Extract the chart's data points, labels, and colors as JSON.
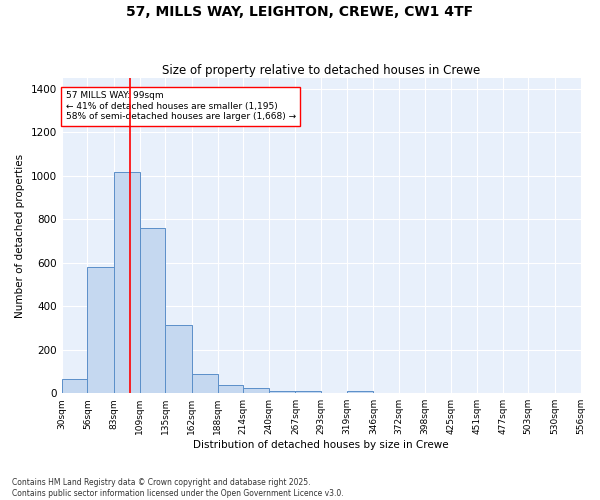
{
  "title": "57, MILLS WAY, LEIGHTON, CREWE, CW1 4TF",
  "subtitle": "Size of property relative to detached houses in Crewe",
  "xlabel": "Distribution of detached houses by size in Crewe",
  "ylabel": "Number of detached properties",
  "bar_color": "#c5d8f0",
  "bar_edge_color": "#5b8fc9",
  "bg_color": "#e8f0fb",
  "grid_color": "#ffffff",
  "vline_color": "red",
  "vline_x": 99,
  "annotation_title": "57 MILLS WAY: 99sqm",
  "annotation_line1": "← 41% of detached houses are smaller (1,195)",
  "annotation_line2": "58% of semi-detached houses are larger (1,668) →",
  "bins": [
    30,
    56,
    83,
    109,
    135,
    162,
    188,
    214,
    240,
    267,
    293,
    319,
    346,
    372,
    398,
    425,
    451,
    477,
    503,
    530,
    556
  ],
  "counts": [
    65,
    580,
    1020,
    760,
    315,
    90,
    38,
    22,
    12,
    10,
    0,
    12,
    0,
    0,
    0,
    0,
    0,
    0,
    0,
    0
  ],
  "ylim": [
    0,
    1450
  ],
  "yticks": [
    0,
    200,
    400,
    600,
    800,
    1000,
    1200,
    1400
  ],
  "footer_line1": "Contains HM Land Registry data © Crown copyright and database right 2025.",
  "footer_line2": "Contains public sector information licensed under the Open Government Licence v3.0."
}
